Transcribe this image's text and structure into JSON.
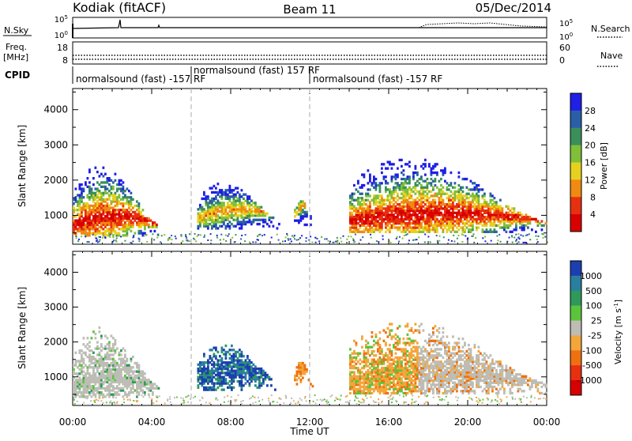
{
  "header": {
    "station": "Kodiak (fitACF)",
    "beam": "Beam 11",
    "date": "05/Dec/2014"
  },
  "noise_panel": {
    "left_label": "N.Sky",
    "right_label": "N.Search",
    "left_ticks": [
      "10^5",
      "10^0"
    ],
    "right_ticks": [
      "10^5",
      "10^0"
    ]
  },
  "freq_panel": {
    "left_label_line1": "Freq.",
    "left_label_line2": "[MHz]",
    "right_label": "Nave",
    "left_ticks": [
      "18",
      "8"
    ],
    "right_ticks": [
      "60",
      "0"
    ]
  },
  "cpid_panel": {
    "label": "CPID",
    "segments": [
      {
        "text": "normalsound (fast) -157 RF",
        "start_hour": 0
      },
      {
        "text": "normalsound (fast) 157 RF",
        "start_hour": 6
      },
      {
        "text": "normalsound (fast) -157 RF",
        "start_hour": 12
      }
    ]
  },
  "x_axis": {
    "label": "Time UT",
    "ticks": [
      "00:00",
      "04:00",
      "08:00",
      "12:00",
      "16:00",
      "20:00",
      "00:00"
    ],
    "range_hours": [
      0,
      24
    ]
  },
  "chart_data": [
    {
      "type": "heatmap",
      "name": "power",
      "ylabel": "Slant Range [km]",
      "y_ticks": [
        "1000",
        "2000",
        "3000",
        "4000"
      ],
      "ylim_km": [
        180,
        4600
      ],
      "colorbar_label": "Power [dB]",
      "colorbar_ticks": [
        "4",
        "8",
        "12",
        "16",
        "20",
        "24",
        "28"
      ],
      "colorbar_colors": [
        "#1f1fe6",
        "#2a5fa8",
        "#3b8f5a",
        "#7fbf3a",
        "#e6d21e",
        "#f08a12",
        "#e83010",
        "#d80000"
      ],
      "echo_regions": [
        {
          "t_start": 0.0,
          "t_end": 4.4,
          "r_low": 400,
          "r_high": 2400,
          "level": "strong"
        },
        {
          "t_start": 6.3,
          "t_end": 10.6,
          "r_low": 600,
          "r_high": 1900,
          "level": "moderate"
        },
        {
          "t_start": 11.2,
          "t_end": 12.2,
          "r_low": 700,
          "r_high": 1400,
          "level": "moderate"
        },
        {
          "t_start": 14.0,
          "t_end": 24.0,
          "r_low": 500,
          "r_high": 2600,
          "level": "strong"
        }
      ]
    },
    {
      "type": "heatmap",
      "name": "velocity",
      "ylabel": "Slant Range [km]",
      "y_ticks": [
        "1000",
        "2000",
        "3000",
        "4000"
      ],
      "ylim_km": [
        180,
        4600
      ],
      "colorbar_label": "Velocity [m s^-1]",
      "colorbar_ticks": [
        "1000",
        "500",
        "100",
        "25",
        "-25",
        "-100",
        "-500",
        "-1000"
      ],
      "colorbar_colors": [
        "#1c3fb0",
        "#2a7fa0",
        "#2e9a5a",
        "#5cc43c",
        "#bdbdb6",
        "#f2a63c",
        "#f07010",
        "#e83010",
        "#d80000"
      ],
      "echo_regions": [
        {
          "t_start": 0.0,
          "t_end": 4.4,
          "r_low": 400,
          "r_high": 2400,
          "level": "ground-scatter"
        },
        {
          "t_start": 6.3,
          "t_end": 10.6,
          "r_low": 600,
          "r_high": 1900,
          "level": "positive"
        },
        {
          "t_start": 11.2,
          "t_end": 12.2,
          "r_low": 700,
          "r_high": 1400,
          "level": "negative"
        },
        {
          "t_start": 14.0,
          "t_end": 24.0,
          "r_low": 500,
          "r_high": 2600,
          "level": "mixed"
        }
      ]
    }
  ]
}
